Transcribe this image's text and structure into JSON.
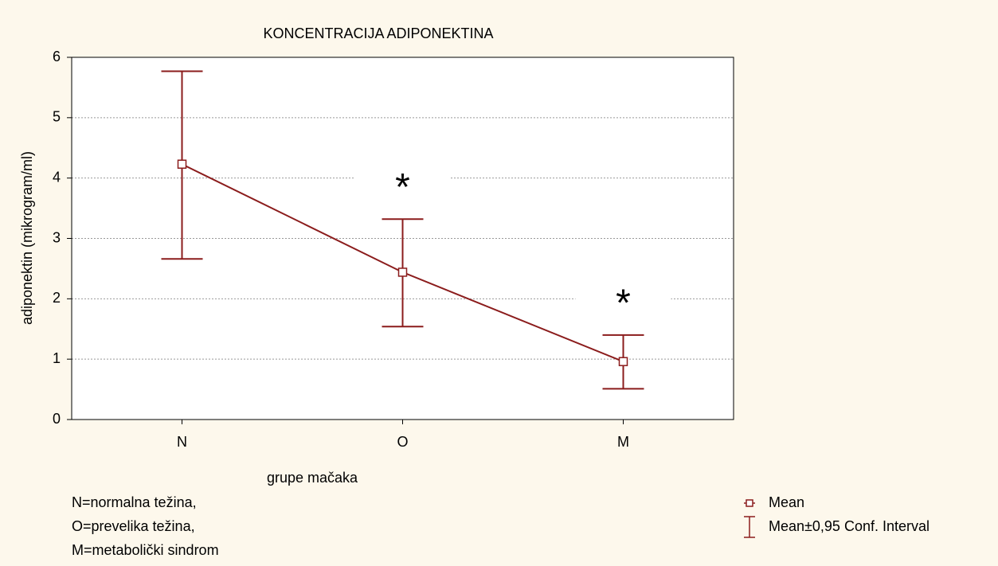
{
  "chart_data": {
    "type": "line",
    "title": "KONCENTRACIJA ADIPONEKTINA",
    "xlabel": "grupe mačaka",
    "ylabel": "adiponektin (mikrogram/ml)",
    "categories": [
      "N",
      "O",
      "M"
    ],
    "series": [
      {
        "name": "Mean",
        "color": "#8b1c1c",
        "values": [
          4.23,
          2.44,
          0.96
        ]
      }
    ],
    "ci": {
      "name": "Mean±0,95 Conf. Interval",
      "color": "#8b1c1c",
      "lower": [
        2.66,
        1.54,
        0.51
      ],
      "upper": [
        5.77,
        3.32,
        1.4
      ]
    },
    "ylim": [
      0,
      6
    ],
    "yticks": [
      0,
      1,
      2,
      3,
      4,
      5,
      6
    ],
    "grid": true,
    "legend": "lower right",
    "annotations": [
      {
        "text": "*",
        "category": "O"
      },
      {
        "text": "*",
        "category": "M"
      }
    ],
    "notes": [
      "N=normalna težina,",
      "O=prevelika težina,",
      "M=metabolički sindrom"
    ]
  }
}
